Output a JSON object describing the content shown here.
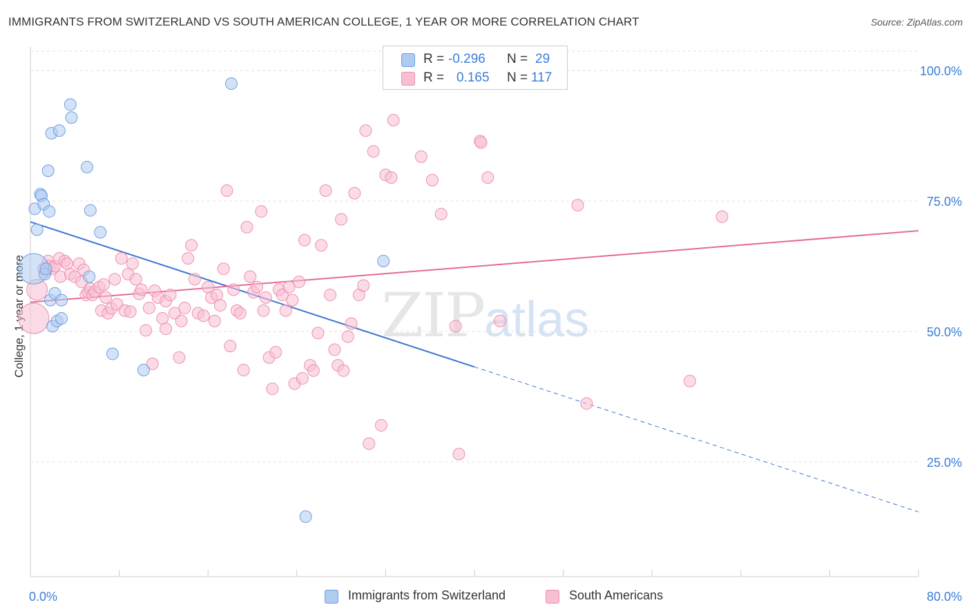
{
  "title": "IMMIGRANTS FROM SWITZERLAND VS SOUTH AMERICAN COLLEGE, 1 YEAR OR MORE CORRELATION CHART",
  "source": "Source: ZipAtlas.com",
  "watermark": {
    "zip": "ZIP",
    "atlas": "atlas"
  },
  "legend": {
    "rows": [
      {
        "r_label": "R =",
        "r_value": "-0.296",
        "n_label": "N =",
        "n_value": "29",
        "color": "#aecbf0",
        "border": "#6fa0df"
      },
      {
        "r_label": "R =",
        "r_value": "0.165",
        "n_label": "N =",
        "n_value": "117",
        "color": "#f7bfd1",
        "border": "#ee8fb0"
      }
    ]
  },
  "bottom_legend": [
    {
      "label": "Immigrants from Switzerland",
      "color": "#aecbf0",
      "border": "#6fa0df"
    },
    {
      "label": "South Americans",
      "color": "#f7bfd1",
      "border": "#ee8fb0"
    }
  ],
  "chart_data": {
    "type": "scatter",
    "title": "IMMIGRANTS FROM SWITZERLAND VS SOUTH AMERICAN COLLEGE, 1 YEAR OR MORE CORRELATION CHART",
    "xlabel": "",
    "ylabel": "College, 1 year or more",
    "xlim": [
      0,
      80
    ],
    "ylim": [
      3,
      104
    ],
    "x_tick_labels": [
      "0.0%",
      "80.0%"
    ],
    "y_ticks": [
      25,
      50,
      75,
      100
    ],
    "y_tick_labels": [
      "25.0%",
      "50.0%",
      "75.0%",
      "100.0%"
    ],
    "grid": true,
    "legend_position": "top-center",
    "series": [
      {
        "name": "Immigrants from Switzerland",
        "color": "#6fa0df",
        "fill": "#aecbf0",
        "r": -0.296,
        "n": 29,
        "trend": {
          "x0": 0,
          "y0": 71,
          "x1": 40,
          "y1": 43.2,
          "dash_to_x": 80,
          "dash_to_y": 15.4
        },
        "points": [
          [
            0.3,
            62,
            3
          ],
          [
            0.4,
            73.5,
            1
          ],
          [
            0.6,
            69.5,
            1
          ],
          [
            0.9,
            76.3,
            1
          ],
          [
            1.0,
            76,
            1
          ],
          [
            1.2,
            74.4,
            1
          ],
          [
            1.3,
            61,
            1
          ],
          [
            1.6,
            80.8,
            1
          ],
          [
            1.7,
            73,
            1
          ],
          [
            1.8,
            56,
            1
          ],
          [
            1.9,
            88,
            1
          ],
          [
            2.0,
            51,
            1
          ],
          [
            2.2,
            57.3,
            1
          ],
          [
            2.4,
            52,
            1
          ],
          [
            2.6,
            88.5,
            1
          ],
          [
            2.8,
            52.5,
            1
          ],
          [
            2.8,
            56,
            1
          ],
          [
            3.6,
            93.5,
            1
          ],
          [
            3.7,
            91,
            1
          ],
          [
            5.1,
            81.5,
            1
          ],
          [
            5.3,
            60.5,
            1
          ],
          [
            5.4,
            73.2,
            1
          ],
          [
            6.3,
            69,
            1
          ],
          [
            7.4,
            45.7,
            1
          ],
          [
            10.2,
            42.6,
            1
          ],
          [
            18.1,
            97.5,
            1
          ],
          [
            24.8,
            14.5,
            1
          ],
          [
            31.8,
            63.5,
            1
          ],
          [
            1.4,
            62,
            1
          ]
        ]
      },
      {
        "name": "South Americans",
        "color": "#ee8fb0",
        "fill": "#f7bfd1",
        "r": 0.165,
        "n": 117,
        "trend": {
          "x0": 0,
          "y0": 55.6,
          "x1": 80,
          "y1": 69.3
        },
        "points": [
          [
            0.3,
            52.5,
            3
          ],
          [
            0.6,
            58,
            2
          ],
          [
            1.2,
            62,
            1
          ],
          [
            1.4,
            61.5,
            1
          ],
          [
            1.6,
            63.5,
            1
          ],
          [
            1.7,
            62.5,
            1
          ],
          [
            2.0,
            62,
            1
          ],
          [
            2.2,
            62.5,
            1
          ],
          [
            2.6,
            64,
            1
          ],
          [
            2.7,
            60.5,
            1
          ],
          [
            3.1,
            63.5,
            1
          ],
          [
            3.3,
            63,
            1
          ],
          [
            3.6,
            61,
            1
          ],
          [
            4.0,
            60.5,
            1
          ],
          [
            4.4,
            63,
            1
          ],
          [
            4.6,
            59.5,
            1
          ],
          [
            4.8,
            61.8,
            1
          ],
          [
            5.0,
            57,
            1
          ],
          [
            5.2,
            57.5,
            1
          ],
          [
            5.4,
            58.2,
            1
          ],
          [
            5.6,
            57,
            1
          ],
          [
            5.8,
            57.6,
            1
          ],
          [
            6.2,
            58.5,
            1
          ],
          [
            6.4,
            54,
            1
          ],
          [
            6.6,
            59,
            1
          ],
          [
            6.8,
            56.5,
            1
          ],
          [
            7.0,
            53.5,
            1
          ],
          [
            7.3,
            54.4,
            1
          ],
          [
            7.6,
            60,
            1
          ],
          [
            7.8,
            55.2,
            1
          ],
          [
            8.2,
            64,
            1
          ],
          [
            8.5,
            54,
            1
          ],
          [
            8.8,
            61,
            1
          ],
          [
            9.0,
            53.8,
            1
          ],
          [
            9.2,
            63,
            1
          ],
          [
            9.5,
            60,
            1
          ],
          [
            9.8,
            57.2,
            1
          ],
          [
            10.0,
            58,
            1
          ],
          [
            10.4,
            50.2,
            1
          ],
          [
            10.7,
            54.5,
            1
          ],
          [
            11.0,
            43.8,
            1
          ],
          [
            11.2,
            57.8,
            1
          ],
          [
            11.5,
            56.5,
            1
          ],
          [
            11.9,
            52.5,
            1
          ],
          [
            12.2,
            55.8,
            1
          ],
          [
            12.6,
            57,
            1
          ],
          [
            12.2,
            50.5,
            1
          ],
          [
            13.0,
            53.5,
            1
          ],
          [
            13.4,
            45,
            1
          ],
          [
            13.6,
            52,
            1
          ],
          [
            13.9,
            54.5,
            1
          ],
          [
            14.2,
            64,
            1
          ],
          [
            14.5,
            66.5,
            1
          ],
          [
            14.8,
            60,
            1
          ],
          [
            15.1,
            53.5,
            1
          ],
          [
            15.6,
            53,
            1
          ],
          [
            16.0,
            58.5,
            1
          ],
          [
            16.3,
            56.5,
            1
          ],
          [
            16.6,
            52,
            1
          ],
          [
            16.8,
            57,
            1
          ],
          [
            17.1,
            55,
            1
          ],
          [
            17.4,
            62,
            1
          ],
          [
            17.7,
            77,
            1
          ],
          [
            18.0,
            47.2,
            1
          ],
          [
            18.3,
            58,
            1
          ],
          [
            18.6,
            54,
            1
          ],
          [
            18.9,
            53.5,
            1
          ],
          [
            19.2,
            42.6,
            1
          ],
          [
            19.5,
            70,
            1
          ],
          [
            19.8,
            60.5,
            1
          ],
          [
            20.1,
            57.5,
            1
          ],
          [
            20.4,
            58.5,
            1
          ],
          [
            20.8,
            73,
            1
          ],
          [
            21.0,
            54,
            1
          ],
          [
            21.2,
            56.5,
            1
          ],
          [
            21.5,
            45,
            1
          ],
          [
            21.8,
            39,
            1
          ],
          [
            22.1,
            46,
            1
          ],
          [
            22.4,
            58,
            1
          ],
          [
            22.7,
            57,
            1
          ],
          [
            23.0,
            54,
            1
          ],
          [
            23.3,
            58.5,
            1
          ],
          [
            23.6,
            56,
            1
          ],
          [
            23.8,
            40,
            1
          ],
          [
            24.2,
            59.5,
            1
          ],
          [
            24.5,
            41,
            1
          ],
          [
            24.7,
            67.5,
            1
          ],
          [
            25.2,
            43.5,
            1
          ],
          [
            25.5,
            42.5,
            1
          ],
          [
            25.9,
            49.7,
            1
          ],
          [
            26.2,
            66.5,
            1
          ],
          [
            26.6,
            77,
            1
          ],
          [
            27.0,
            57,
            1
          ],
          [
            27.4,
            46.5,
            1
          ],
          [
            27.7,
            43.5,
            1
          ],
          [
            28.0,
            71.5,
            1
          ],
          [
            28.2,
            42.5,
            1
          ],
          [
            28.6,
            49,
            1
          ],
          [
            28.9,
            51.5,
            1
          ],
          [
            29.2,
            76.5,
            1
          ],
          [
            29.6,
            57,
            1
          ],
          [
            30.0,
            58.8,
            1
          ],
          [
            30.2,
            88.5,
            1
          ],
          [
            30.5,
            28.5,
            1
          ],
          [
            30.9,
            84.5,
            1
          ],
          [
            31.6,
            32,
            1
          ],
          [
            32.0,
            80,
            1
          ],
          [
            32.5,
            79.5,
            1
          ],
          [
            32.7,
            90.5,
            1
          ],
          [
            35.2,
            83.5,
            1
          ],
          [
            36.2,
            79,
            1
          ],
          [
            37.0,
            72.5,
            1
          ],
          [
            38.3,
            51,
            1
          ],
          [
            38.6,
            26.5,
            1
          ],
          [
            40.5,
            86.5,
            1
          ],
          [
            41.2,
            79.5,
            1
          ],
          [
            42.3,
            52,
            1
          ],
          [
            49.3,
            74.2,
            1
          ],
          [
            50.1,
            36.2,
            1
          ],
          [
            59.4,
            40.5,
            1
          ],
          [
            62.3,
            72,
            1
          ],
          [
            40.6,
            86.2,
            1
          ]
        ]
      }
    ]
  }
}
